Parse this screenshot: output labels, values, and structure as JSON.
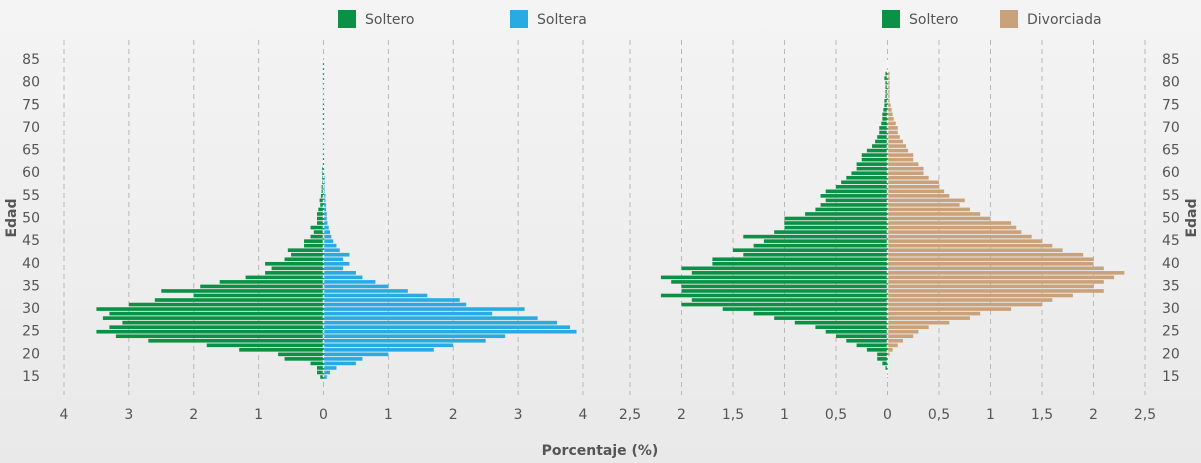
{
  "chart_data": [
    {
      "type": "pyramid",
      "legend": "top",
      "grid": true,
      "yaxis_side": "left",
      "ylabel": "Edad",
      "xlabel": "Porcentaje (%)",
      "xlim": [
        -4,
        4
      ],
      "ylim": [
        15,
        85
      ],
      "xticks": [
        {
          "value": -4,
          "label": "4"
        },
        {
          "value": -3,
          "label": "3"
        },
        {
          "value": -2,
          "label": "2"
        },
        {
          "value": -1,
          "label": "1"
        },
        0,
        1,
        2,
        3,
        4
      ],
      "yticks": [
        15,
        20,
        25,
        30,
        35,
        40,
        45,
        50,
        55,
        60,
        65,
        70,
        75,
        80,
        85
      ],
      "y": [
        15,
        16,
        17,
        18,
        19,
        20,
        21,
        22,
        23,
        24,
        25,
        26,
        27,
        28,
        29,
        30,
        31,
        32,
        33,
        34,
        35,
        36,
        37,
        38,
        39,
        40,
        41,
        42,
        43,
        44,
        45,
        46,
        47,
        48,
        49,
        50,
        51,
        52,
        53,
        54,
        55,
        56,
        57,
        58,
        59,
        60,
        61,
        62,
        63,
        64,
        65,
        66,
        67,
        68,
        69,
        70,
        71,
        72,
        73,
        74,
        75,
        76,
        77,
        78,
        79,
        80,
        81,
        82,
        83,
        84
      ],
      "series": [
        {
          "name": "Soltero",
          "color": "#0a9146",
          "side": "left",
          "values": [
            0.05,
            0.1,
            0.1,
            0.2,
            0.6,
            0.7,
            1.3,
            1.8,
            2.7,
            3.2,
            3.5,
            3.3,
            3.1,
            3.4,
            3.3,
            3.5,
            3.0,
            2.6,
            2.0,
            2.5,
            1.9,
            1.6,
            1.2,
            0.9,
            0.8,
            0.9,
            0.6,
            0.5,
            0.55,
            0.3,
            0.3,
            0.2,
            0.15,
            0.2,
            0.1,
            0.1,
            0.1,
            0.08,
            0.05,
            0.06,
            0.04,
            0.03,
            0.03,
            0.02,
            0.02,
            0.02,
            0.02,
            0.01,
            0.01,
            0.01,
            0.01,
            0.01,
            0.01,
            0.01,
            0.01,
            0.01,
            0.01,
            0.01,
            0.01,
            0.01,
            0.01,
            0.01,
            0.01,
            0.01,
            0.01,
            0.01,
            0.01,
            0.01,
            0.01,
            0.01
          ]
        },
        {
          "name": "Soltera",
          "color": "#29abe2",
          "side": "right",
          "values": [
            0.05,
            0.1,
            0.2,
            0.5,
            0.6,
            1.0,
            1.7,
            2.0,
            2.5,
            2.8,
            3.9,
            3.8,
            3.6,
            3.3,
            2.6,
            3.1,
            2.2,
            2.1,
            1.6,
            1.3,
            1.0,
            0.8,
            0.6,
            0.5,
            0.3,
            0.4,
            0.3,
            0.4,
            0.25,
            0.2,
            0.15,
            0.12,
            0.1,
            0.08,
            0.06,
            0.05,
            0.05,
            0.04,
            0.04,
            0.03,
            0.03,
            0.02,
            0.02,
            0.02,
            0.02,
            0.01,
            0.01,
            0.01,
            0.01,
            0.01,
            0.01,
            0.01,
            0.01,
            0.01,
            0.01,
            0.01,
            0.01,
            0.01,
            0.01,
            0.01,
            0.01,
            0.01,
            0.01,
            0.01,
            0.01,
            0.01,
            0.01,
            0.01,
            0.01,
            0.01
          ]
        }
      ]
    },
    {
      "type": "pyramid",
      "legend": "top",
      "grid": true,
      "yaxis_side": "right",
      "ylabel": "Edad",
      "xlim": [
        -2.5,
        2.5
      ],
      "ylim": [
        15,
        85
      ],
      "xticks": [
        {
          "value": -2.5,
          "label": "2,5"
        },
        {
          "value": -2,
          "label": "2"
        },
        {
          "value": -1.5,
          "label": "1,5"
        },
        {
          "value": -1,
          "label": "1"
        },
        {
          "value": -0.5,
          "label": "0,5"
        },
        0,
        {
          "value": 0.5,
          "label": "0,5"
        },
        1,
        {
          "value": 1.5,
          "label": "1,5"
        },
        2,
        {
          "value": 2.5,
          "label": "2,5"
        }
      ],
      "yticks": [
        15,
        20,
        25,
        30,
        35,
        40,
        45,
        50,
        55,
        60,
        65,
        70,
        75,
        80,
        85
      ],
      "y": [
        15,
        16,
        17,
        18,
        19,
        20,
        21,
        22,
        23,
        24,
        25,
        26,
        27,
        28,
        29,
        30,
        31,
        32,
        33,
        34,
        35,
        36,
        37,
        38,
        39,
        40,
        41,
        42,
        43,
        44,
        45,
        46,
        47,
        48,
        49,
        50,
        51,
        52,
        53,
        54,
        55,
        56,
        57,
        58,
        59,
        60,
        61,
        62,
        63,
        64,
        65,
        66,
        67,
        68,
        69,
        70,
        71,
        72,
        73,
        74,
        75,
        76,
        77,
        78,
        79,
        80,
        81,
        82,
        83,
        84
      ],
      "series": [
        {
          "name": "Soltero",
          "color": "#0a9146",
          "side": "left",
          "values": [
            0,
            0,
            0.02,
            0.05,
            0.1,
            0.1,
            0.2,
            0.3,
            0.4,
            0.5,
            0.6,
            0.7,
            0.9,
            1.1,
            1.3,
            1.6,
            2.0,
            1.9,
            2.2,
            2.0,
            2.0,
            2.1,
            2.2,
            1.9,
            2.0,
            1.7,
            1.7,
            1.4,
            1.5,
            1.3,
            1.2,
            1.4,
            1.1,
            1.0,
            1.0,
            1.0,
            0.8,
            0.7,
            0.65,
            0.6,
            0.65,
            0.6,
            0.5,
            0.45,
            0.4,
            0.35,
            0.3,
            0.3,
            0.25,
            0.25,
            0.2,
            0.15,
            0.12,
            0.1,
            0.08,
            0.08,
            0.06,
            0.05,
            0.05,
            0.04,
            0.03,
            0.03,
            0.02,
            0.02,
            0.02,
            0.02,
            0.03,
            0.02,
            0,
            0
          ]
        },
        {
          "name": "Divorciada",
          "color": "#c9a27b",
          "side": "right",
          "values": [
            0,
            0,
            0,
            0,
            0,
            0.02,
            0.05,
            0.1,
            0.15,
            0.25,
            0.3,
            0.4,
            0.6,
            0.8,
            0.9,
            1.2,
            1.5,
            1.6,
            1.8,
            2.1,
            2.0,
            2.1,
            2.2,
            2.3,
            2.1,
            2.0,
            2.0,
            1.9,
            1.7,
            1.6,
            1.5,
            1.4,
            1.3,
            1.25,
            1.2,
            1.0,
            0.9,
            0.8,
            0.7,
            0.75,
            0.6,
            0.55,
            0.5,
            0.5,
            0.4,
            0.35,
            0.35,
            0.3,
            0.25,
            0.25,
            0.2,
            0.18,
            0.15,
            0.12,
            0.1,
            0.1,
            0.08,
            0.06,
            0.05,
            0.04,
            0.03,
            0.02,
            0.02,
            0.02,
            0.02,
            0.02,
            0.02,
            0.02,
            0,
            0
          ]
        }
      ]
    }
  ]
}
